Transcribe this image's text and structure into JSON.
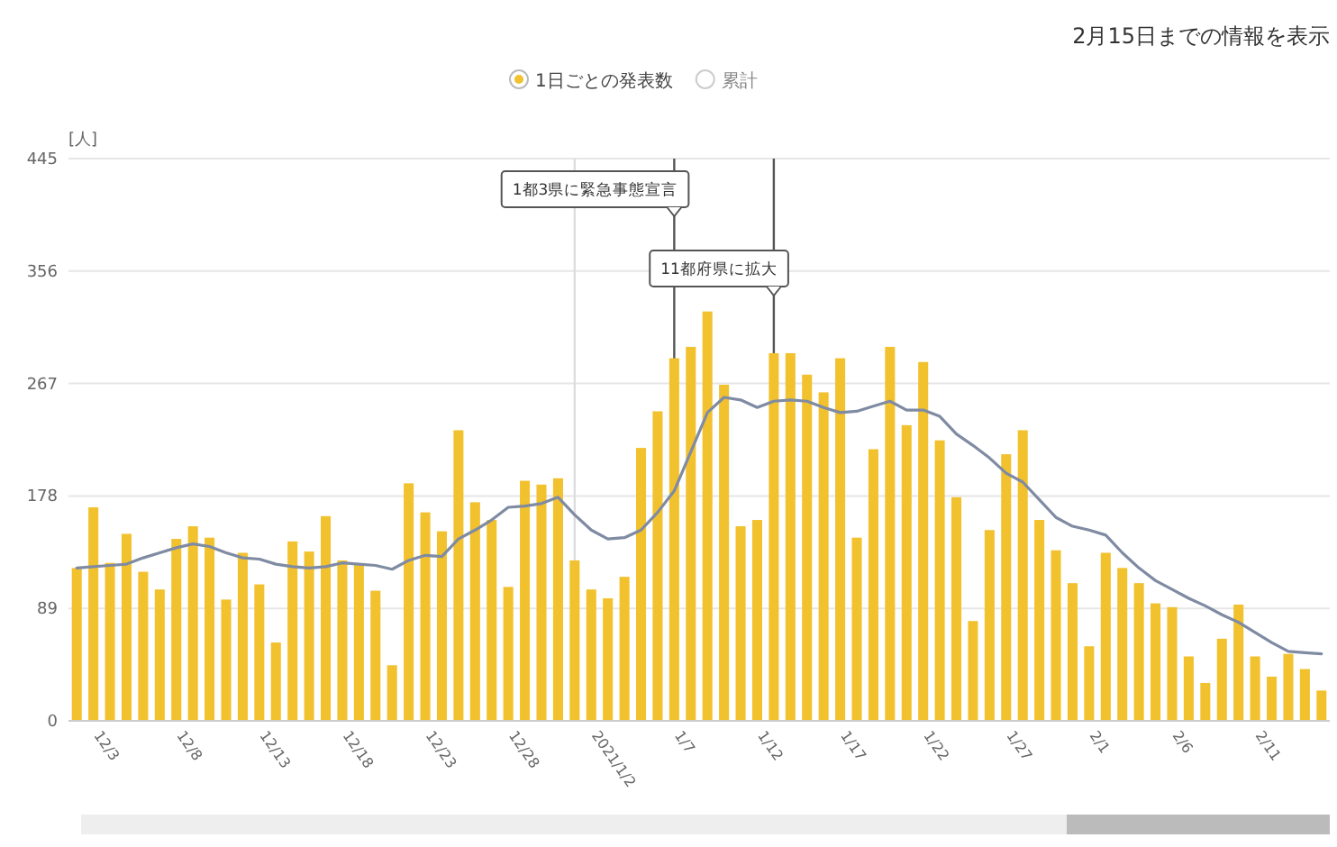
{
  "chart_data": {
    "type": "bar",
    "title": "2月15日までの情報を表示",
    "ylabel": "[人]",
    "x": [
      "2020-12-02",
      "2020-12-03",
      "2020-12-04",
      "2020-12-05",
      "2020-12-06",
      "2020-12-07",
      "2020-12-08",
      "2020-12-09",
      "2020-12-10",
      "2020-12-11",
      "2020-12-12",
      "2020-12-13",
      "2020-12-14",
      "2020-12-15",
      "2020-12-16",
      "2020-12-17",
      "2020-12-18",
      "2020-12-19",
      "2020-12-20",
      "2020-12-21",
      "2020-12-22",
      "2020-12-23",
      "2020-12-24",
      "2020-12-25",
      "2020-12-26",
      "2020-12-27",
      "2020-12-28",
      "2020-12-29",
      "2020-12-30",
      "2020-12-31",
      "2021-01-01",
      "2021-01-02",
      "2021-01-03",
      "2021-01-04",
      "2021-01-05",
      "2021-01-06",
      "2021-01-07",
      "2021-01-08",
      "2021-01-09",
      "2021-01-10",
      "2021-01-11",
      "2021-01-12",
      "2021-01-13",
      "2021-01-14",
      "2021-01-15",
      "2021-01-16",
      "2021-01-17",
      "2021-01-18",
      "2021-01-19",
      "2021-01-20",
      "2021-01-21",
      "2021-01-22",
      "2021-01-23",
      "2021-01-24",
      "2021-01-25",
      "2021-01-26",
      "2021-01-27",
      "2021-01-28",
      "2021-01-29",
      "2021-01-30",
      "2021-01-31",
      "2021-02-01",
      "2021-02-02",
      "2021-02-03",
      "2021-02-04",
      "2021-02-05",
      "2021-02-06",
      "2021-02-07",
      "2021-02-08",
      "2021-02-09",
      "2021-02-10",
      "2021-02-11",
      "2021-02-12",
      "2021-02-13",
      "2021-02-14",
      "2021-02-15"
    ],
    "series": [
      {
        "name": "1日ごとの発表数",
        "color": "#f2c12e",
        "values": [
          121,
          169,
          125,
          148,
          118,
          104,
          144,
          154,
          145,
          96,
          133,
          108,
          62,
          142,
          134,
          162,
          127,
          124,
          103,
          44,
          188,
          165,
          150,
          230,
          173,
          159,
          106,
          190,
          187,
          192,
          127,
          104,
          97,
          114,
          216,
          245,
          287,
          296,
          324,
          266,
          154,
          159,
          291,
          291,
          274,
          260,
          287,
          145,
          215,
          296,
          234,
          284,
          222,
          177,
          79,
          151,
          211,
          230,
          159,
          135,
          109,
          59,
          133,
          121,
          109,
          93,
          90,
          51,
          30,
          65,
          92,
          51,
          35,
          53,
          41,
          24
        ]
      },
      {
        "type": "line",
        "color": "#7f8ba3",
        "values": [
          121,
          122,
          123,
          124,
          129,
          133,
          137,
          140,
          138,
          133,
          129,
          128,
          124,
          122,
          121,
          122,
          125,
          124,
          123,
          120,
          127,
          131,
          130,
          144,
          151,
          159,
          169,
          170,
          172,
          177,
          163,
          151,
          144,
          145,
          151,
          165,
          182,
          213,
          244,
          256,
          254,
          248,
          253,
          254,
          253,
          248,
          244,
          245,
          249,
          253,
          246,
          246,
          241,
          227,
          218,
          208,
          196,
          189,
          175,
          161,
          154,
          151,
          147,
          133,
          121,
          111,
          104,
          97,
          91,
          84,
          78,
          70,
          62,
          55,
          54,
          53
        ]
      }
    ],
    "xlim": [
      "2020-12-01T12:00",
      "2021-02-15T12:00"
    ],
    "xticks": [
      {
        "value": "2020-12-03",
        "label": "12/3"
      },
      {
        "value": "2020-12-08",
        "label": "12/8"
      },
      {
        "value": "2020-12-13",
        "label": "12/13"
      },
      {
        "value": "2020-12-18",
        "label": "12/18"
      },
      {
        "value": "2020-12-23",
        "label": "12/23"
      },
      {
        "value": "2020-12-28",
        "label": "12/28"
      },
      {
        "value": "2021-01-02",
        "label": "2021/1/2"
      },
      {
        "value": "2021-01-07",
        "label": "1/7"
      },
      {
        "value": "2021-01-12",
        "label": "1/12"
      },
      {
        "value": "2021-01-17",
        "label": "1/17"
      },
      {
        "value": "2021-01-22",
        "label": "1/22"
      },
      {
        "value": "2021-01-27",
        "label": "1/27"
      },
      {
        "value": "2021-02-01",
        "label": "2/1"
      },
      {
        "value": "2021-02-06",
        "label": "2/6"
      },
      {
        "value": "2021-02-11",
        "label": "2/11"
      }
    ],
    "ylim": [
      0,
      445
    ],
    "yticks": [
      0,
      89,
      178,
      267,
      356,
      445
    ],
    "grid": "y",
    "legend": "top",
    "ref_lines": [
      {
        "axis": "x",
        "value": "2021-01-01",
        "color": "#dddddd"
      },
      {
        "axis": "x",
        "value": "2021-01-07",
        "label": "1都3県に緊急事態宣言",
        "color": "#555555"
      },
      {
        "axis": "x",
        "value": "2021-01-13",
        "label": "11都府県に拡大",
        "color": "#555555"
      }
    ],
    "annotations": [
      "累計"
    ]
  }
}
